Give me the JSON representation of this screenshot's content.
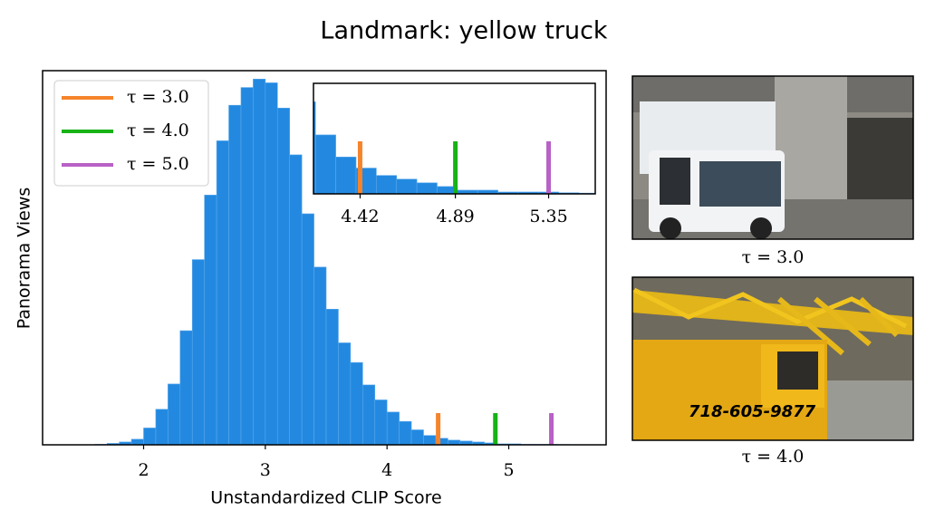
{
  "chart_data": [
    {
      "type": "histogram",
      "title": "Landmark: yellow truck",
      "x_label": "Unstandardized CLIP Score",
      "y_label": "Panorama Views",
      "bins": [
        1.6,
        1.7,
        1.8,
        1.9,
        2.0,
        2.1,
        2.2,
        2.3,
        2.4,
        2.5,
        2.6,
        2.7,
        2.8,
        2.9,
        3.0,
        3.1,
        3.2,
        3.3,
        3.4,
        3.5,
        3.6,
        3.7,
        3.8,
        3.9,
        4.0,
        4.1,
        4.2,
        4.3,
        4.4,
        4.5,
        4.6,
        4.7,
        4.8,
        4.9,
        5.0,
        5.1,
        5.2,
        5.3,
        5.4,
        5.5,
        5.6
      ],
      "counts": [
        0.5,
        1.5,
        3,
        6,
        18,
        38,
        65,
        122,
        198,
        267,
        325,
        363,
        382,
        391,
        387,
        360,
        310,
        247,
        190,
        145,
        109,
        88,
        64,
        48,
        35,
        25,
        16,
        10,
        7,
        5,
        4,
        3,
        2,
        1,
        1,
        0.5,
        0.5,
        0.5,
        0.3,
        0.2
      ],
      "color": "#2389e0",
      "series": [
        {
          "name": "τ = 3.0",
          "color": "#f5842b",
          "values": [
            4.42
          ]
        },
        {
          "name": "τ = 4.0",
          "color": "#17b317",
          "values": [
            4.89
          ]
        },
        {
          "name": "τ = 5.0",
          "color": "#b861c6",
          "values": [
            5.35
          ]
        }
      ],
      "xlim": [
        1.17,
        5.8
      ],
      "ylim": [
        0,
        400
      ],
      "xticks": [
        2,
        3,
        4,
        5
      ],
      "legend": "upper left"
    },
    {
      "type": "histogram",
      "xlim": [
        4.19,
        5.58
      ],
      "ylim": [
        0,
        30
      ],
      "xticks": [
        {
          "value": 4.42,
          "label": "4.42"
        },
        {
          "value": 4.89,
          "label": "4.89"
        },
        {
          "value": 5.35,
          "label": "5.35"
        }
      ]
    }
  ],
  "images": [
    {
      "caption": "τ = 3.0"
    },
    {
      "caption": "τ = 4.0"
    }
  ]
}
